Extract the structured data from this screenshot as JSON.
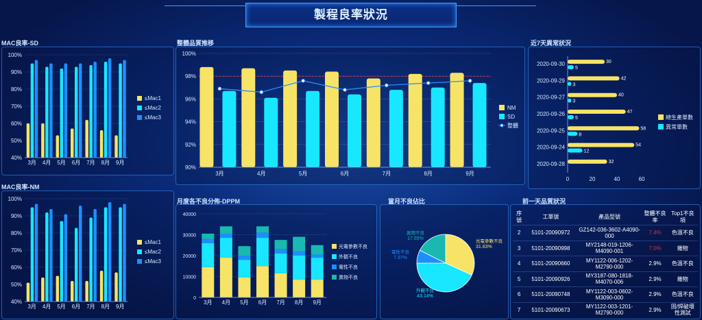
{
  "page_title": "製程良率狀況",
  "panels": {
    "mac_sd": "MAC良率-SD",
    "mac_nm": "MAC良率-NM",
    "overall": "整體品質推移",
    "defects": "近7天異常狀況",
    "dppm": "月度各不良分佈-DPPM",
    "pie": "當月不良佔比",
    "quality": "前一天品質狀況"
  },
  "colors": {
    "yellow": "#f7e365",
    "cyan": "#19e6ff",
    "blue": "#1c8fff",
    "teal": "#19b8b0",
    "red": "#e03030"
  },
  "chart_data": [
    {
      "type": "bar",
      "title": "MAC良率-SD",
      "categories": [
        "3月",
        "4月",
        "5月",
        "6月",
        "7月",
        "8月",
        "9月"
      ],
      "ylim": [
        40,
        100
      ],
      "yticks": [
        "40%",
        "50%",
        "60%",
        "70%",
        "80%",
        "90%",
        "100%"
      ],
      "series": [
        {
          "name": "≤Mac1",
          "values": [
            60,
            60,
            53,
            57,
            62,
            56,
            53
          ]
        },
        {
          "name": "≤Mac2",
          "values": [
            95,
            93,
            92,
            93,
            94,
            96,
            95
          ]
        },
        {
          "name": "≤Mac3",
          "values": [
            97,
            95,
            95,
            95,
            96,
            98,
            97
          ]
        }
      ],
      "legend": "right"
    },
    {
      "type": "bar",
      "title": "MAC良率-NM",
      "categories": [
        "3月",
        "4月",
        "5月",
        "6月",
        "7月",
        "8月",
        "9月"
      ],
      "ylim": [
        40,
        100
      ],
      "yticks": [
        "40%",
        "50%",
        "60%",
        "70%",
        "80%",
        "90%",
        "100%"
      ],
      "series": [
        {
          "name": "≤Mac1",
          "values": [
            51,
            54,
            55,
            52,
            52,
            58,
            57
          ]
        },
        {
          "name": "≤Mac2",
          "values": [
            95,
            92,
            87,
            83,
            89,
            95,
            95
          ]
        },
        {
          "name": "≤Mac3",
          "values": [
            97,
            94,
            91,
            96,
            94,
            98,
            97
          ]
        }
      ],
      "legend": "right"
    },
    {
      "type": "bar",
      "title": "整體品質推移",
      "categories": [
        "3月",
        "4月",
        "5月",
        "6月",
        "7月",
        "8月",
        "9月"
      ],
      "ylim": [
        90,
        100
      ],
      "yticks": [
        "90%",
        "92%",
        "94%",
        "96%",
        "98%",
        "100%"
      ],
      "series": [
        {
          "name": "NM",
          "values": [
            98.8,
            98.7,
            98.5,
            98.4,
            97.8,
            98.2,
            98.3
          ]
        },
        {
          "name": "SD",
          "values": [
            96.7,
            96.1,
            96.7,
            96.4,
            96.8,
            97.0,
            97.4
          ]
        },
        {
          "name": "整體",
          "values": [
            96.9,
            96.6,
            97.6,
            96.8,
            97.2,
            97.4,
            97.6
          ]
        }
      ],
      "target_line": 98,
      "legend": "right"
    },
    {
      "type": "bar",
      "title": "近7天異常狀況",
      "orientation": "horizontal",
      "categories": [
        "2020-09-30",
        "2020-09-29",
        "2020-09-27",
        "2020-09-26",
        "2020-09-25",
        "2020-09-24",
        "2020-09-28"
      ],
      "xlim": [
        0,
        70
      ],
      "xticks": [
        "0",
        "20",
        "40",
        "60"
      ],
      "series": [
        {
          "name": "總生產單數",
          "values": [
            30,
            42,
            40,
            47,
            58,
            54,
            32
          ]
        },
        {
          "name": "異常單數",
          "values": [
            5,
            3,
            3,
            5,
            8,
            12,
            null
          ]
        }
      ],
      "legend": "right"
    },
    {
      "type": "bar",
      "title": "月度各不良分佈-DPPM",
      "stacked": true,
      "categories": [
        "3月",
        "4月",
        "5月",
        "6月",
        "7月",
        "8月",
        "9月"
      ],
      "ylim": [
        0,
        40000
      ],
      "yticks": [
        "0",
        "10000",
        "20000",
        "30000",
        "40000"
      ],
      "series": [
        {
          "name": "光電參數不良",
          "values": [
            14500,
            19000,
            9500,
            15000,
            11500,
            8500,
            8500
          ]
        },
        {
          "name": "外觀不良",
          "values": [
            11500,
            9500,
            8500,
            13500,
            9500,
            11500,
            10500
          ]
        },
        {
          "name": "電性不良",
          "values": [
            2000,
            2000,
            2000,
            2500,
            2000,
            2000,
            1500
          ]
        },
        {
          "name": "異物不良",
          "values": [
            2500,
            3500,
            4500,
            3000,
            4500,
            7000,
            4500
          ]
        }
      ],
      "legend": "right"
    },
    {
      "type": "pie",
      "title": "當月不良佔比",
      "series": [
        {
          "name": "光電參數不良",
          "value": 31.83,
          "label": "31.83%"
        },
        {
          "name": "外觀不良",
          "value": 43.14,
          "label": "43.14%"
        },
        {
          "name": "電性不良",
          "value": 7.37,
          "label": "7.37%"
        },
        {
          "name": "異物不良",
          "value": 17.65,
          "label": "17.65%"
        }
      ]
    }
  ],
  "quality_table": {
    "headers": [
      "序號",
      "工單號",
      "產品型號",
      "整體不良率",
      "Top1不良項"
    ],
    "rows": [
      {
        "no": "2",
        "order": "5101-20090972",
        "model": "GZ142-036-3602-A4090-000",
        "rate": "7.4%",
        "rate_red": true,
        "top1": "色溫不良"
      },
      {
        "no": "3",
        "order": "5101-20090998",
        "model": "MY2148-019-1206-M4090-001",
        "rate": "7.0%",
        "rate_red": true,
        "top1": "雜物"
      },
      {
        "no": "4",
        "order": "5101-20090660",
        "model": "MY1122-006-1202-M2790-000",
        "rate": "2.9%",
        "rate_red": false,
        "top1": "色溫不良"
      },
      {
        "no": "5",
        "order": "5101-20090926",
        "model": "MY3187-080-1818-M4070-006",
        "rate": "2.9%",
        "rate_red": false,
        "top1": "雜物"
      },
      {
        "no": "6",
        "order": "5101-20090748",
        "model": "MY1122-003-0602-M3090-000",
        "rate": "2.9%",
        "rate_red": false,
        "top1": "色溫不良"
      },
      {
        "no": "7",
        "order": "5101-20090673",
        "model": "MY1122-003-1201-M2790-000",
        "rate": "2.9%",
        "rate_red": false,
        "top1": "固/焊破壞性測試"
      }
    ]
  }
}
